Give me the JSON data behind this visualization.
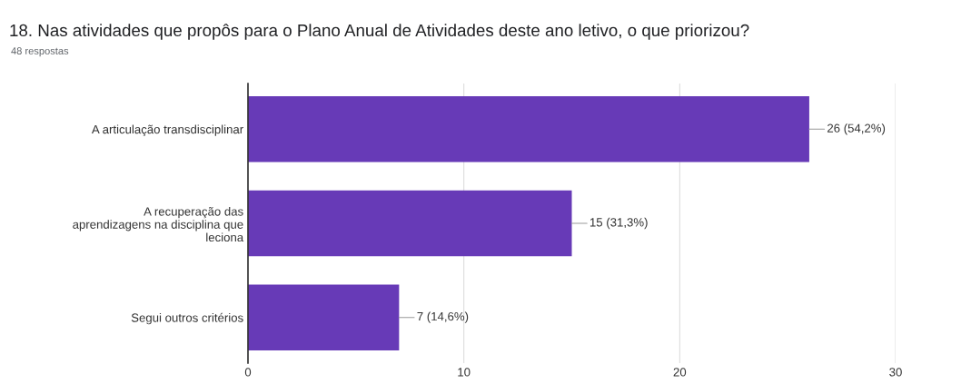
{
  "chart_data": {
    "type": "bar",
    "orientation": "horizontal",
    "title": "18. Nas atividades que propôs para o Plano Anual de Atividades deste ano letivo, o que priorizou?",
    "subtitle": "48 respostas",
    "categories": [
      "A articulação transdisciplinar",
      "A recuperação das\naprendizagens na disciplina que\nleciona",
      "Segui outros critérios"
    ],
    "values": [
      26,
      15,
      7
    ],
    "value_labels": [
      "26 (54,2%)",
      "15 (31,3%)",
      "7 (14,6%)"
    ],
    "color": "#673ab7",
    "xlim": [
      0,
      30
    ],
    "xticks": [
      0,
      10,
      20,
      30
    ],
    "grid": "x",
    "legend": false
  }
}
